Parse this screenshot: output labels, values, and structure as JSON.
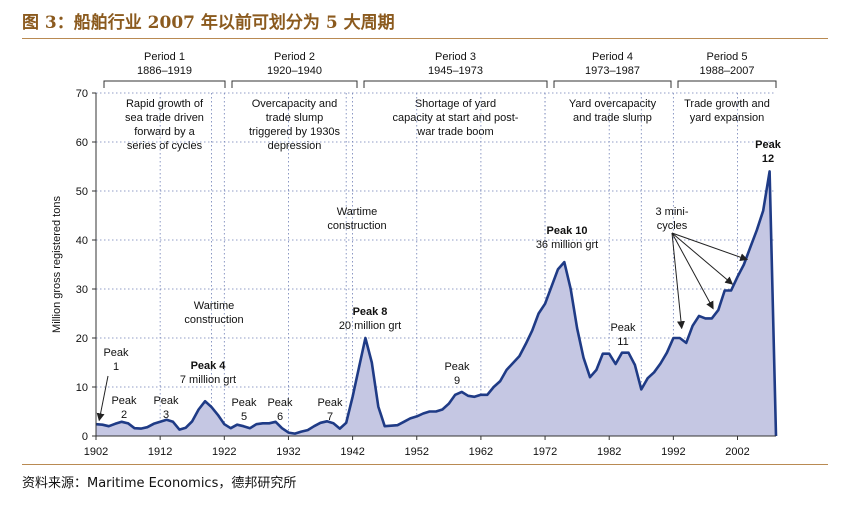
{
  "figure_title": "图 3：船舶行业 2007 年以前可划分为 5 大周期",
  "source": "资料来源：Maritime Economics，德邦研究所",
  "chart_data": {
    "type": "area",
    "title": "",
    "xlabel": "",
    "ylabel": "Million gross registered tons",
    "xlim": [
      1902,
      2008
    ],
    "ylim": [
      0,
      70
    ],
    "x_ticks": [
      1902,
      1912,
      1922,
      1932,
      1942,
      1952,
      1962,
      1972,
      1982,
      1992,
      2002
    ],
    "y_ticks": [
      0,
      10,
      20,
      30,
      40,
      50,
      60,
      70
    ],
    "grid": "dotted",
    "fill_color": "#c5c7e3",
    "line_color": "#1f3b86",
    "series": [
      {
        "x": [
          1902,
          1903,
          1904,
          1905,
          1906,
          1907,
          1908,
          1909,
          1910,
          1911,
          1912,
          1913,
          1914,
          1915,
          1916,
          1917,
          1918,
          1919,
          1920,
          1921,
          1922,
          1923,
          1924,
          1925,
          1926,
          1927,
          1928,
          1929,
          1930,
          1931,
          1932,
          1933,
          1934,
          1935,
          1936,
          1937,
          1938,
          1939,
          1940,
          1941,
          1942,
          1943,
          1944,
          1945,
          1946,
          1947,
          1948,
          1949,
          1950,
          1951,
          1952,
          1953,
          1954,
          1955,
          1956,
          1957,
          1958,
          1959,
          1960,
          1961,
          1962,
          1963,
          1964,
          1965,
          1966,
          1967,
          1968,
          1969,
          1970,
          1971,
          1972,
          1973,
          1974,
          1975,
          1976,
          1977,
          1978,
          1979,
          1980,
          1981,
          1982,
          1983,
          1984,
          1985,
          1986,
          1987,
          1988,
          1989,
          1990,
          1991,
          1992,
          1993,
          1994,
          1995,
          1996,
          1997,
          1998,
          1999,
          2000,
          2001,
          2002,
          2003,
          2004,
          2005,
          2006,
          2007,
          2008
        ],
        "values": [
          2.4,
          2.3,
          2.0,
          2.5,
          2.9,
          2.6,
          1.6,
          1.5,
          1.8,
          2.5,
          2.9,
          3.3,
          2.9,
          1.3,
          1.7,
          3.0,
          5.4,
          7.1,
          5.9,
          4.3,
          2.4,
          1.6,
          2.3,
          2.0,
          1.6,
          2.4,
          2.6,
          2.6,
          2.9,
          1.6,
          0.7,
          0.5,
          0.9,
          1.2,
          2.0,
          2.7,
          3.0,
          2.6,
          1.5,
          2.7,
          8.0,
          14.0,
          20.0,
          15.0,
          6.0,
          2.0,
          2.1,
          2.2,
          2.9,
          3.6,
          4.0,
          4.6,
          5.0,
          5.0,
          5.4,
          6.6,
          8.4,
          9.0,
          8.2,
          8.0,
          8.4,
          8.4,
          10.0,
          11.2,
          13.5,
          14.9,
          16.3,
          18.8,
          21.5,
          25.0,
          27.0,
          30.5,
          34.0,
          35.5,
          30.0,
          22.0,
          16.0,
          12.0,
          13.5,
          16.8,
          16.8,
          14.7,
          17.0,
          17.0,
          14.5,
          9.5,
          11.8,
          13.0,
          14.8,
          17.0,
          20.0,
          20.0,
          19.0,
          22.5,
          24.5,
          24.0,
          24.0,
          25.7,
          29.7,
          29.7,
          32.5,
          35.0,
          38.5,
          42.0,
          46.0,
          54.0,
          0
        ]
      }
    ],
    "periods": [
      {
        "name": "Period 1",
        "years": "1886–1919",
        "description": "Rapid growth of sea trade driven forward by a series of cycles"
      },
      {
        "name": "Period 2",
        "years": "1920–1940",
        "description": "Overcapacity and trade slump triggered by 1930s depression"
      },
      {
        "name": "Period 3",
        "years": "1945–1973",
        "description": "Shortage of yard capacity at start and post-war trade boom"
      },
      {
        "name": "Period 4",
        "years": "1973–1987",
        "description": "Yard overcapacity and trade slump"
      },
      {
        "name": "Period 5",
        "years": "1988–2007",
        "description": "Trade growth and yard expansion"
      }
    ],
    "annotations": [
      {
        "id": "peak-1",
        "lines": [
          "Peak",
          "1"
        ],
        "bold": false
      },
      {
        "id": "peak-2",
        "lines": [
          "Peak",
          "2"
        ],
        "bold": false
      },
      {
        "id": "peak-3",
        "lines": [
          "Peak",
          "3"
        ],
        "bold": false
      },
      {
        "id": "peak-4",
        "lines": [
          "Peak 4",
          "7 million grt"
        ],
        "bold": true
      },
      {
        "id": "peak-5",
        "lines": [
          "Peak",
          "5"
        ],
        "bold": false
      },
      {
        "id": "peak-6",
        "lines": [
          "Peak",
          "6"
        ],
        "bold": false
      },
      {
        "id": "peak-7",
        "lines": [
          "Peak",
          "7"
        ],
        "bold": false
      },
      {
        "id": "peak-8",
        "lines": [
          "Peak 8",
          "20 million grt"
        ],
        "bold": true
      },
      {
        "id": "peak-9",
        "lines": [
          "Peak",
          "9"
        ],
        "bold": false
      },
      {
        "id": "peak-10",
        "lines": [
          "Peak 10",
          "36 million grt"
        ],
        "bold": true
      },
      {
        "id": "peak-11",
        "lines": [
          "Peak",
          "11"
        ],
        "bold": false
      },
      {
        "id": "peak-12",
        "lines": [
          "Peak",
          "12"
        ],
        "bold": true
      },
      {
        "id": "wartime-1",
        "lines": [
          "Wartime",
          "construction"
        ],
        "bold": false
      },
      {
        "id": "wartime-2",
        "lines": [
          "Wartime",
          "construction"
        ],
        "bold": false
      },
      {
        "id": "mini-cycles",
        "lines": [
          "3 mini-",
          "cycles"
        ],
        "bold": false
      }
    ]
  }
}
